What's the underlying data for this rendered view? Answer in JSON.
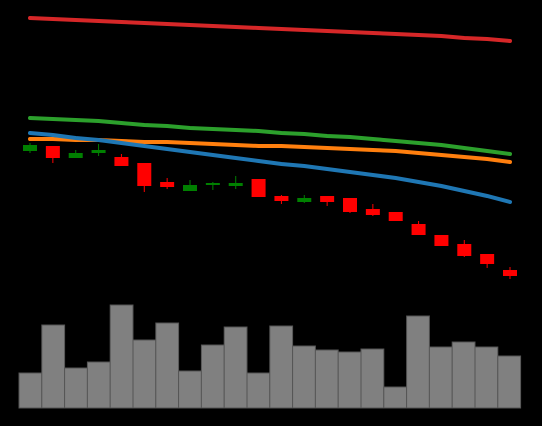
{
  "chart_data": {
    "type": "candlestick",
    "categories": [
      null,
      null,
      null,
      null,
      null,
      null,
      null,
      null,
      null,
      null,
      null,
      null,
      null,
      null,
      null,
      null,
      null,
      null,
      null,
      null,
      null,
      null
    ],
    "open": [
      149,
      154,
      142,
      147,
      143,
      137,
      118,
      109,
      115,
      114,
      121,
      104,
      98,
      104,
      102,
      91,
      88,
      76,
      65,
      56,
      46,
      30
    ],
    "close": [
      155,
      142,
      147,
      150,
      134,
      114,
      113,
      115,
      117,
      117,
      103,
      99,
      102,
      98,
      88,
      85,
      79,
      65,
      54,
      44,
      36,
      24
    ],
    "high": [
      157,
      154,
      150,
      156,
      146,
      137,
      122,
      120,
      118,
      124,
      121,
      105,
      105,
      104,
      102,
      96,
      88,
      79,
      65,
      60,
      46,
      33
    ],
    "low": [
      147,
      137,
      142,
      144,
      134,
      108,
      111,
      109,
      110,
      111,
      103,
      96,
      97,
      94,
      87,
      84,
      79,
      65,
      54,
      43,
      32,
      21
    ],
    "up_color": "#008000",
    "down_color": "#ff0000",
    "ylim": [
      0,
      300
    ],
    "series": [
      {
        "color": "#d62728",
        "values": [
          282,
          281,
          280,
          279,
          278,
          277,
          276,
          275,
          274,
          273,
          272,
          271,
          270,
          269,
          268,
          267,
          266,
          265,
          264,
          262,
          261,
          259
        ]
      },
      {
        "color": "#2ca02c",
        "values": [
          182,
          181,
          180,
          179,
          177,
          175,
          174,
          172,
          171,
          170,
          169,
          167,
          166,
          164,
          163,
          161,
          159,
          157,
          155,
          152,
          149,
          146
        ]
      },
      {
        "color": "#ff7f0e",
        "values": [
          161,
          161,
          160,
          160,
          159,
          158,
          158,
          157,
          156,
          155,
          154,
          154,
          153,
          152,
          151,
          150,
          149,
          147,
          145,
          143,
          141,
          138
        ]
      },
      {
        "color": "#1f77b4",
        "values": [
          167,
          165,
          162,
          160,
          157,
          154,
          151,
          148,
          145,
          142,
          139,
          136,
          134,
          131,
          128,
          125,
          122,
          118,
          114,
          109,
          104,
          98
        ]
      }
    ],
    "volume": {
      "color": "#808080",
      "ylim": [
        0,
        110
      ],
      "values": [
        35,
        83,
        40,
        46,
        103,
        68,
        85,
        37,
        63,
        81,
        35,
        82,
        62,
        58,
        56,
        59,
        21,
        92,
        61,
        66,
        61,
        52
      ]
    }
  }
}
